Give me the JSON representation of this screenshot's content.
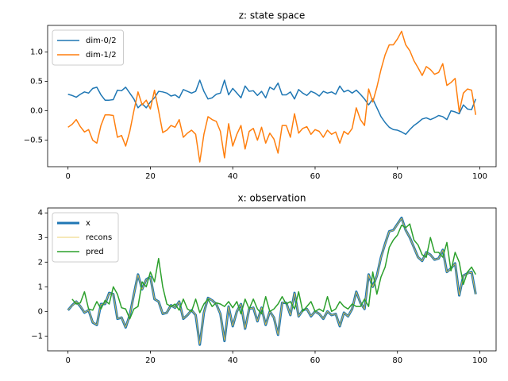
{
  "chart_data": [
    {
      "type": "line",
      "title": "z: state space",
      "x": [
        0,
        1,
        2,
        3,
        4,
        5,
        6,
        7,
        8,
        9,
        10,
        11,
        12,
        13,
        14,
        15,
        16,
        17,
        18,
        19,
        20,
        21,
        22,
        23,
        24,
        25,
        26,
        27,
        28,
        29,
        30,
        31,
        32,
        33,
        34,
        35,
        36,
        37,
        38,
        39,
        40,
        41,
        42,
        43,
        44,
        45,
        46,
        47,
        48,
        49,
        50,
        51,
        52,
        53,
        54,
        55,
        56,
        57,
        58,
        59,
        60,
        61,
        62,
        63,
        64,
        65,
        66,
        67,
        68,
        69,
        70,
        71,
        72,
        73,
        74,
        75,
        76,
        77,
        78,
        79,
        80,
        81,
        82,
        83,
        84,
        85,
        86,
        87,
        88,
        89,
        90,
        91,
        92,
        93,
        94,
        95,
        96,
        97,
        98,
        99
      ],
      "series": [
        {
          "name": "dim-0/2",
          "color": "#1f77b4",
          "linewidth": 1.5,
          "values": [
            0.28,
            0.26,
            0.23,
            0.28,
            0.32,
            0.3,
            0.38,
            0.4,
            0.27,
            0.18,
            0.18,
            0.19,
            0.35,
            0.34,
            0.4,
            0.3,
            0.2,
            0.05,
            0.12,
            0.05,
            0.15,
            0.22,
            0.33,
            0.32,
            0.3,
            0.25,
            0.27,
            0.22,
            0.36,
            0.33,
            0.3,
            0.33,
            0.52,
            0.33,
            0.2,
            0.22,
            0.28,
            0.3,
            0.52,
            0.27,
            0.38,
            0.3,
            0.22,
            0.42,
            0.33,
            0.34,
            0.26,
            0.33,
            0.22,
            0.4,
            0.36,
            0.47,
            0.27,
            0.27,
            0.32,
            0.2,
            0.36,
            0.3,
            0.26,
            0.33,
            0.3,
            0.25,
            0.33,
            0.3,
            0.32,
            0.28,
            0.42,
            0.32,
            0.35,
            0.3,
            0.35,
            0.28,
            0.2,
            0.1,
            0.2,
            0.05,
            -0.1,
            -0.2,
            -0.28,
            -0.32,
            -0.33,
            -0.36,
            -0.4,
            -0.32,
            -0.25,
            -0.2,
            -0.14,
            -0.12,
            -0.15,
            -0.12,
            -0.08,
            -0.1,
            -0.15,
            0.0,
            -0.02,
            -0.05,
            0.1,
            0.03,
            0.02,
            0.2
          ]
        },
        {
          "name": "dim-1/2",
          "color": "#ff7f0e",
          "linewidth": 1.5,
          "values": [
            -0.28,
            -0.23,
            -0.15,
            -0.27,
            -0.36,
            -0.32,
            -0.5,
            -0.55,
            -0.25,
            -0.07,
            -0.07,
            -0.08,
            -0.45,
            -0.42,
            -0.6,
            -0.35,
            0.0,
            0.32,
            0.1,
            0.18,
            0.03,
            0.35,
            0.0,
            -0.37,
            -0.33,
            -0.25,
            -0.28,
            -0.15,
            -0.45,
            -0.38,
            -0.33,
            -0.4,
            -0.87,
            -0.4,
            -0.1,
            -0.15,
            -0.18,
            -0.35,
            -0.8,
            -0.22,
            -0.6,
            -0.4,
            -0.25,
            -0.65,
            -0.35,
            -0.3,
            -0.5,
            -0.28,
            -0.55,
            -0.38,
            -0.48,
            -0.72,
            -0.25,
            -0.25,
            -0.45,
            -0.05,
            -0.38,
            -0.3,
            -0.27,
            -0.4,
            -0.32,
            -0.35,
            -0.45,
            -0.33,
            -0.4,
            -0.36,
            -0.55,
            -0.35,
            -0.4,
            -0.3,
            0.05,
            -0.15,
            -0.25,
            0.37,
            0.15,
            0.4,
            0.7,
            0.95,
            1.12,
            1.12,
            1.22,
            1.35,
            1.12,
            1.02,
            0.85,
            0.73,
            0.6,
            0.75,
            0.7,
            0.62,
            0.65,
            0.8,
            0.43,
            0.48,
            0.55,
            -0.02,
            0.3,
            0.37,
            0.35,
            -0.07
          ]
        }
      ],
      "xlim": [
        -4.95,
        103.95
      ],
      "ylim": [
        -0.95,
        1.45
      ],
      "xticks": [
        0,
        20,
        40,
        60,
        80,
        100
      ],
      "yticks": [
        {
          "value": -0.5,
          "label": "−0.5"
        },
        {
          "value": 0,
          "label": "0.0"
        },
        {
          "value": 0.5,
          "label": "0.5"
        },
        {
          "value": 1,
          "label": "1.0"
        }
      ],
      "legend": "upper left"
    },
    {
      "type": "line",
      "title": "x: observation",
      "x": [
        0,
        1,
        2,
        3,
        4,
        5,
        6,
        7,
        8,
        9,
        10,
        11,
        12,
        13,
        14,
        15,
        16,
        17,
        18,
        19,
        20,
        21,
        22,
        23,
        24,
        25,
        26,
        27,
        28,
        29,
        30,
        31,
        32,
        33,
        34,
        35,
        36,
        37,
        38,
        39,
        40,
        41,
        42,
        43,
        44,
        45,
        46,
        47,
        48,
        49,
        50,
        51,
        52,
        53,
        54,
        55,
        56,
        57,
        58,
        59,
        60,
        61,
        62,
        63,
        64,
        65,
        66,
        67,
        68,
        69,
        70,
        71,
        72,
        73,
        74,
        75,
        76,
        77,
        78,
        79,
        80,
        81,
        82,
        83,
        84,
        85,
        86,
        87,
        88,
        89,
        90,
        91,
        92,
        93,
        94,
        95,
        96,
        97,
        98,
        99
      ],
      "series": [
        {
          "name": "x",
          "color": "#1f77b4",
          "linewidth": 3,
          "values": [
            0.05,
            0.25,
            0.4,
            0.2,
            -0.05,
            0.05,
            -0.45,
            -0.55,
            0.3,
            0.3,
            0.75,
            0.7,
            -0.3,
            -0.25,
            -0.65,
            -0.15,
            0.7,
            1.5,
            0.9,
            1.3,
            1.4,
            0.5,
            0.4,
            -0.1,
            -0.05,
            0.25,
            0.15,
            0.4,
            -0.3,
            -0.15,
            0.05,
            -0.15,
            -1.35,
            -0.05,
            0.55,
            0.45,
            0.3,
            -0.1,
            -1.2,
            0.2,
            -0.6,
            0.0,
            0.3,
            -0.7,
            0.1,
            0.15,
            -0.4,
            0.15,
            -0.55,
            0.0,
            -0.25,
            -0.95,
            0.35,
            0.35,
            -0.15,
            0.75,
            -0.2,
            0.05,
            0.1,
            -0.2,
            0.0,
            -0.1,
            -0.3,
            0.0,
            -0.15,
            -0.1,
            -0.6,
            -0.05,
            -0.2,
            0.1,
            0.8,
            0.35,
            0.1,
            1.5,
            1.0,
            1.45,
            2.2,
            2.75,
            3.25,
            3.3,
            3.55,
            3.8,
            3.3,
            3.0,
            2.6,
            2.2,
            2.05,
            2.4,
            2.3,
            2.1,
            2.15,
            2.5,
            1.6,
            1.75,
            1.95,
            0.65,
            1.45,
            1.55,
            1.6,
            0.7
          ]
        },
        {
          "name": "recons",
          "color": "#e8c040",
          "linewidth": 0.8,
          "values": [
            0.06,
            0.24,
            0.4,
            0.21,
            -0.04,
            0.05,
            -0.44,
            -0.54,
            0.29,
            0.31,
            0.74,
            0.7,
            -0.29,
            -0.25,
            -0.64,
            -0.15,
            0.69,
            1.49,
            0.9,
            1.29,
            1.39,
            0.5,
            0.4,
            -0.09,
            -0.05,
            0.25,
            0.15,
            0.39,
            -0.29,
            -0.15,
            0.05,
            -0.14,
            -1.33,
            -0.05,
            0.54,
            0.45,
            0.3,
            -0.1,
            -1.18,
            0.2,
            -0.59,
            0.0,
            0.3,
            -0.69,
            0.1,
            0.15,
            -0.39,
            0.15,
            -0.54,
            0.0,
            -0.25,
            -0.94,
            0.35,
            0.35,
            -0.15,
            0.74,
            -0.2,
            0.05,
            0.1,
            -0.19,
            0.0,
            -0.1,
            -0.29,
            0.0,
            -0.15,
            -0.1,
            -0.59,
            -0.05,
            -0.2,
            0.1,
            0.79,
            0.35,
            0.1,
            1.49,
            1.0,
            1.44,
            2.19,
            2.74,
            3.24,
            3.29,
            3.54,
            3.78,
            3.3,
            3.0,
            2.59,
            2.2,
            2.05,
            2.39,
            2.3,
            2.1,
            2.15,
            2.49,
            1.6,
            1.75,
            1.94,
            0.66,
            1.45,
            1.54,
            1.59,
            0.7
          ]
        },
        {
          "name": "pred",
          "color": "#2ca02c",
          "linewidth": 1.5,
          "values": [
            null,
            0.5,
            0.3,
            0.35,
            0.8,
            0.1,
            0.05,
            0.4,
            0.1,
            0.45,
            0.3,
            1.0,
            0.7,
            0.15,
            0.1,
            -0.3,
            0.1,
            0.2,
            1.2,
            1.0,
            1.6,
            1.2,
            2.15,
            1.0,
            0.3,
            0.2,
            0.3,
            0.05,
            0.5,
            0.1,
            0.0,
            0.5,
            -0.05,
            0.3,
            0.5,
            0.2,
            0.35,
            0.3,
            0.2,
            0.4,
            0.15,
            0.4,
            -0.1,
            0.5,
            0.1,
            0.5,
            0.1,
            -0.1,
            0.6,
            0.0,
            0.1,
            0.3,
            0.6,
            0.3,
            0.4,
            0.1,
            0.8,
            0.0,
            0.2,
            0.4,
            0.0,
            0.1,
            0.0,
            0.6,
            0.0,
            0.1,
            0.4,
            0.2,
            0.1,
            0.3,
            0.2,
            0.2,
            0.5,
            0.2,
            1.6,
            0.7,
            1.4,
            1.8,
            2.6,
            2.9,
            3.1,
            3.5,
            3.4,
            3.55,
            2.9,
            2.7,
            2.3,
            2.2,
            3.0,
            2.4,
            2.4,
            2.2,
            2.8,
            1.65,
            2.4,
            2.0,
            1.1,
            1.6,
            1.8,
            1.5
          ]
        }
      ],
      "xlim": [
        -4.95,
        103.95
      ],
      "ylim": [
        -1.6,
        4.2
      ],
      "xticks": [
        0,
        20,
        40,
        60,
        80,
        100
      ],
      "yticks": [
        {
          "value": -1,
          "label": "−1"
        },
        0,
        1,
        2,
        3,
        4
      ],
      "legend": "upper left"
    }
  ]
}
